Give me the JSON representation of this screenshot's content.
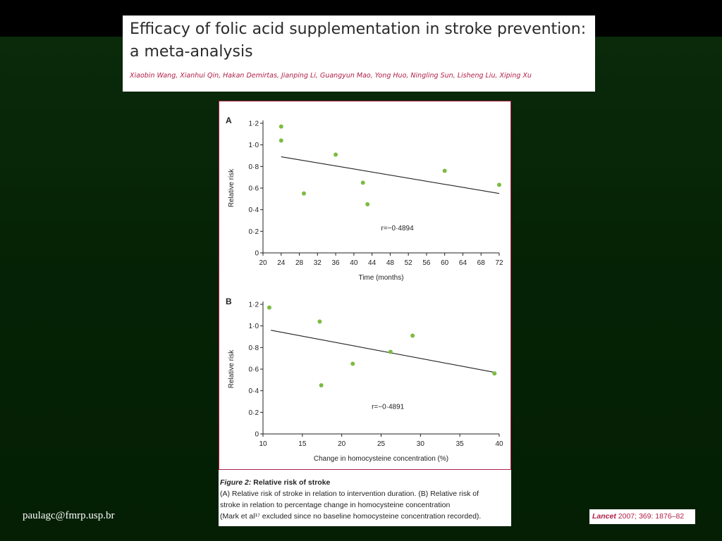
{
  "slide": {
    "title": "Efficacy of folic acid supplementation in stroke prevention: a meta-analysis",
    "authors": "Xiaobin Wang, Xianhui Qin, Hakan Demirtas, Jianping Li, Guangyun Mao, Yong Huo, Ningling Sun, Lisheng Liu, Xiping Xu",
    "caption_label": "Figure 2:",
    "caption_title": "Relative risk of stroke",
    "caption_line1": "(A) Relative risk of stroke in relation to intervention duration. (B) Relative risk of",
    "caption_line2": "stroke in relation to percentage change in homocysteine concentration",
    "caption_line3": "(Mark et al¹⁷ excluded since no baseline homocysteine concentration recorded).",
    "email": "paulagc@fmrp.usp.br",
    "citation_journal": "Lancet",
    "citation_rest": "2007; 369: 1876–82"
  },
  "colors": {
    "point": "#7dbb42",
    "line": "#222222",
    "accent": "#b01e48"
  },
  "chart_data": [
    {
      "panel": "A",
      "type": "scatter",
      "xlabel": "Time (months)",
      "ylabel": "Relative risk",
      "xlim": [
        20,
        72
      ],
      "ylim": [
        0,
        1.2
      ],
      "xticks": [
        20,
        24,
        28,
        32,
        36,
        40,
        44,
        48,
        52,
        56,
        60,
        64,
        68,
        72
      ],
      "yticks": [
        0,
        0.2,
        0.4,
        0.6,
        0.8,
        1.0,
        1.2
      ],
      "yticklabels": [
        "0",
        "0·2",
        "0·4",
        "0·6",
        "0·8",
        "1·0",
        "1·2"
      ],
      "points": [
        {
          "x": 24,
          "y": 1.17
        },
        {
          "x": 24,
          "y": 1.04
        },
        {
          "x": 29,
          "y": 0.55
        },
        {
          "x": 36,
          "y": 0.91
        },
        {
          "x": 42,
          "y": 0.65
        },
        {
          "x": 43,
          "y": 0.45
        },
        {
          "x": 60,
          "y": 0.76
        },
        {
          "x": 72,
          "y": 0.63
        }
      ],
      "trend": {
        "x": [
          24,
          72
        ],
        "y": [
          0.89,
          0.55
        ]
      },
      "annotation": "r=−0·4894",
      "annotation_at": {
        "x": 46,
        "y": 0.21
      }
    },
    {
      "panel": "B",
      "type": "scatter",
      "xlabel": "Change in homocysteine concentration (%)",
      "ylabel": "Relative risk",
      "xlim": [
        10,
        40
      ],
      "ylim": [
        0,
        1.2
      ],
      "xticks": [
        10,
        15,
        20,
        25,
        30,
        35,
        40
      ],
      "yticks": [
        0,
        0.2,
        0.4,
        0.6,
        0.8,
        1.0,
        1.2
      ],
      "yticklabels": [
        "0",
        "0·2",
        "0·4",
        "0·6",
        "0·8",
        "1·0",
        "1·2"
      ],
      "points": [
        {
          "x": 10.8,
          "y": 1.17
        },
        {
          "x": 17.2,
          "y": 1.04
        },
        {
          "x": 17.4,
          "y": 0.45
        },
        {
          "x": 21.4,
          "y": 0.65
        },
        {
          "x": 26.2,
          "y": 0.76
        },
        {
          "x": 29.0,
          "y": 0.91
        },
        {
          "x": 39.4,
          "y": 0.56
        }
      ],
      "trend": {
        "x": [
          11,
          39.4
        ],
        "y": [
          0.96,
          0.57
        ]
      },
      "annotation": "r=−0·4891",
      "annotation_at": {
        "x": 23.8,
        "y": 0.23
      }
    }
  ]
}
